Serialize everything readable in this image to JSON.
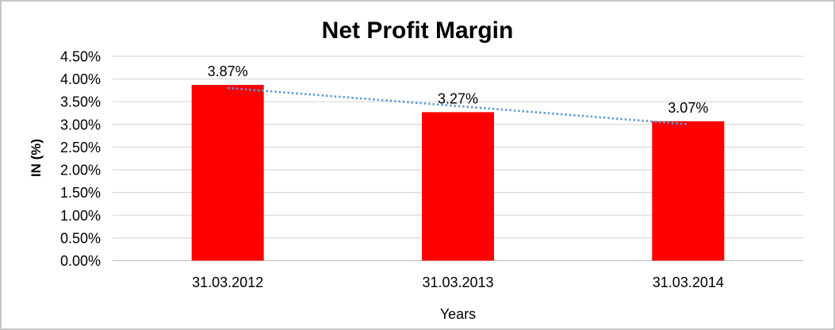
{
  "chart_data": {
    "type": "bar",
    "title": "Net Profit Margin",
    "xlabel": "Years",
    "ylabel": "IN (%)",
    "categories": [
      "31.03.2012",
      "31.03.2013",
      "31.03.2014"
    ],
    "values": [
      3.87,
      3.27,
      3.07
    ],
    "data_labels": [
      "3.87%",
      "3.27%",
      "3.07%"
    ],
    "ylim": [
      0,
      4.5
    ],
    "ytick_step": 0.5,
    "ytick_labels": [
      "0.00%",
      "0.50%",
      "1.00%",
      "1.50%",
      "2.00%",
      "2.50%",
      "3.00%",
      "3.50%",
      "4.00%",
      "4.50%"
    ],
    "grid": true,
    "legend": false,
    "bar_color": "#FF0000",
    "gridline_color": "#DBDBDB",
    "axisline_color": "#C3C3C3",
    "text_color": "#000000",
    "trendline": {
      "type": "linear",
      "style": "dotted",
      "color": "#5B9BD5"
    }
  }
}
